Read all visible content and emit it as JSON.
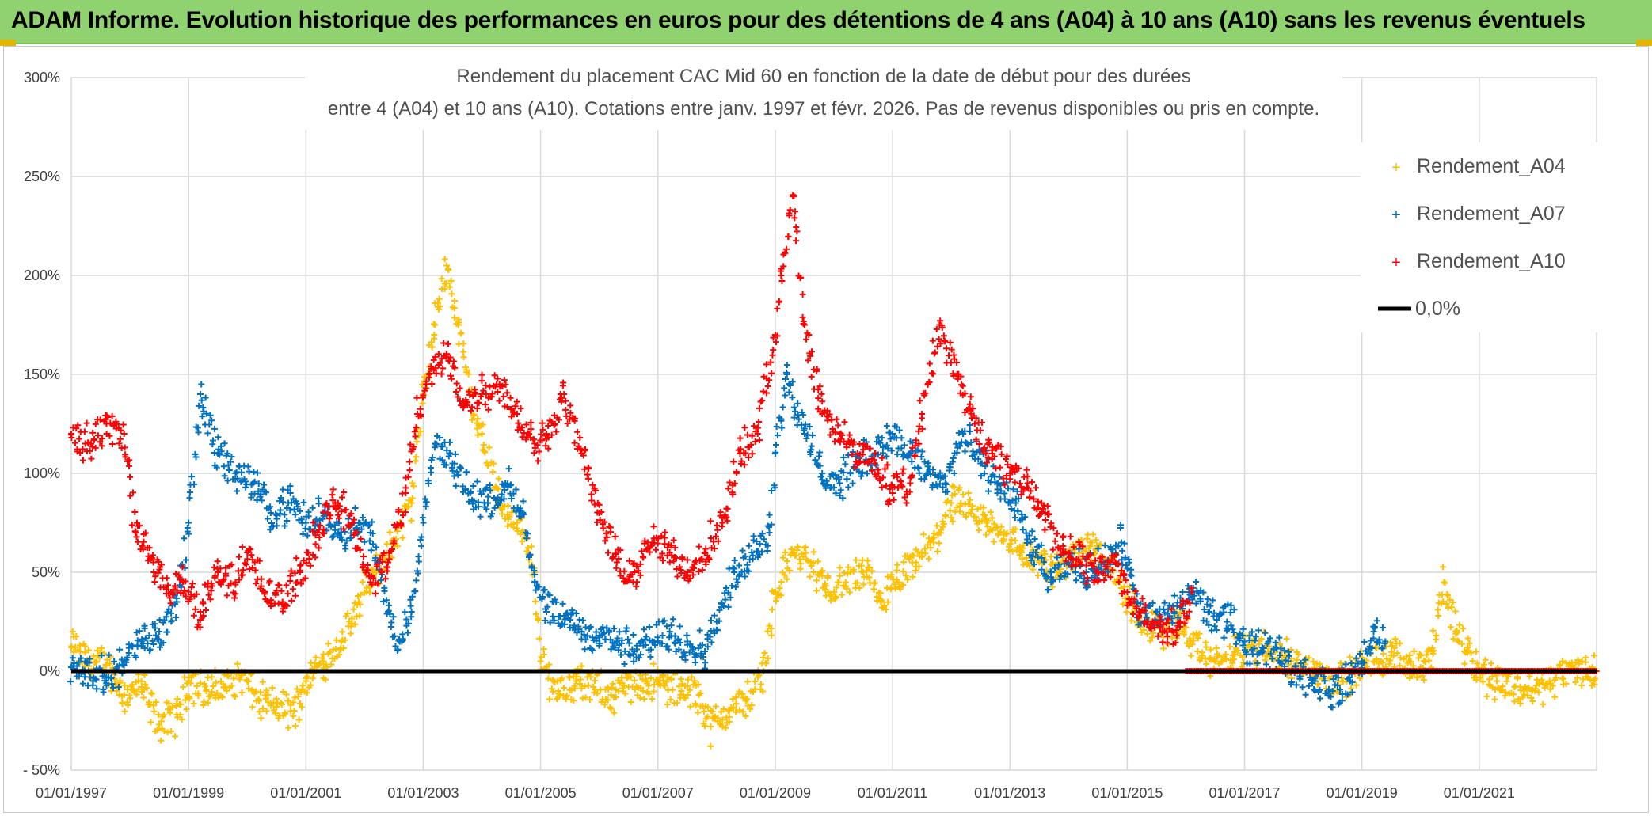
{
  "header": {
    "title": "ADAM Informe. Evolution historique des performances en euros pour des détentions de 4 ans (A04) à 10 ans (A10) sans les revenus éventuels"
  },
  "colors": {
    "banner": "#8fd26f",
    "a04": "#ffc000",
    "a07": "#0070c0",
    "a10": "#ff0000",
    "zero_line": "#000000",
    "grid": "#d9d9d9"
  },
  "chart_data": {
    "type": "scatter",
    "title_lines": [
      "Rendement du placement CAC Mid 60 en fonction de la date de début pour des durées",
      "entre 4 (A04) et 10 ans (A10). Cotations entre janv. 1997 et févr. 2026. Pas de revenus disponibles ou pris en compte."
    ],
    "xlabel": "",
    "ylabel": "",
    "xlim": [
      1997.0,
      2023.0
    ],
    "ylim": [
      -50,
      300
    ],
    "y_ticks": [
      -50,
      0,
      50,
      100,
      150,
      200,
      250,
      300
    ],
    "y_tick_labels": [
      "- 50%",
      "0%",
      "50%",
      "100%",
      "150%",
      "200%",
      "250%",
      "300%"
    ],
    "x_ticks": [
      1997,
      1999,
      2001,
      2003,
      2005,
      2007,
      2009,
      2011,
      2013,
      2015,
      2017,
      2019,
      2021
    ],
    "x_tick_labels": [
      "01/01/1997",
      "01/01/1999",
      "01/01/2001",
      "01/01/2003",
      "01/01/2005",
      "01/01/2007",
      "01/01/2009",
      "01/01/2011",
      "01/01/2013",
      "01/01/2015",
      "01/01/2017",
      "01/01/2019",
      "01/01/2021"
    ],
    "legend_position": "right",
    "legend": [
      {
        "label": "Rendement_A04",
        "marker": "plus",
        "color": "#ffc000"
      },
      {
        "label": "Rendement_A07",
        "marker": "plus",
        "color": "#0070c0"
      },
      {
        "label": "Rendement_A10",
        "marker": "plus",
        "color": "#ff0000"
      },
      {
        "label": "0,0%",
        "marker": "line",
        "color": "#000000"
      }
    ],
    "series": [
      {
        "name": "Rendement_A04",
        "x": [
          1997.0,
          1997.3,
          1997.6,
          1997.9,
          1998.2,
          1998.5,
          1998.8,
          1999.0,
          1999.3,
          1999.6,
          1999.9,
          2000.2,
          2000.5,
          2000.8,
          2001.0,
          2001.3,
          2001.6,
          2001.9,
          2002.2,
          2002.5,
          2002.8,
          2003.0,
          2003.2,
          2003.4,
          2003.6,
          2003.8,
          2004.0,
          2004.3,
          2004.6,
          2004.9,
          2005.0,
          2005.3,
          2005.6,
          2005.9,
          2006.2,
          2006.5,
          2006.8,
          2007.1,
          2007.4,
          2007.7,
          2007.9,
          2008.2,
          2008.5,
          2008.8,
          2009.0,
          2009.3,
          2009.6,
          2009.9,
          2010.2,
          2010.5,
          2010.8,
          2011.1,
          2011.4,
          2011.7,
          2012.0,
          2012.3,
          2012.6,
          2012.9,
          2013.2,
          2013.5,
          2013.8,
          2014.1,
          2014.4,
          2014.7,
          2015.0,
          2015.3,
          2015.6,
          2015.9,
          2016.2,
          2016.5,
          2016.8,
          2017.1,
          2017.4,
          2017.7,
          2018.0,
          2018.3,
          2018.6,
          2018.9,
          2019.2,
          2019.5,
          2019.8,
          2020.0,
          2020.2,
          2020.4,
          2020.6,
          2020.8,
          2021.0,
          2021.3,
          2021.6,
          2021.9,
          2022.2,
          2022.5,
          2022.8,
          2023.0
        ],
        "values": [
          12,
          5,
          3,
          -12,
          -8,
          -27,
          -22,
          -5,
          -10,
          -8,
          -2,
          -15,
          -18,
          -20,
          -5,
          5,
          15,
          35,
          50,
          65,
          85,
          140,
          175,
          205,
          175,
          140,
          120,
          85,
          75,
          50,
          5,
          -10,
          -5,
          -8,
          -12,
          -8,
          -5,
          -7,
          -10,
          -12,
          -28,
          -20,
          -15,
          0,
          40,
          60,
          55,
          40,
          45,
          50,
          35,
          45,
          55,
          65,
          85,
          80,
          75,
          70,
          60,
          55,
          50,
          60,
          65,
          55,
          35,
          25,
          20,
          25,
          10,
          5,
          8,
          12,
          10,
          8,
          2,
          0,
          -5,
          0,
          5,
          8,
          5,
          2,
          10,
          45,
          20,
          12,
          0,
          -5,
          -8,
          -10,
          -5,
          0,
          0,
          0
        ]
      },
      {
        "name": "Rendement_A07",
        "x": [
          1997.0,
          1997.3,
          1997.6,
          1997.9,
          1998.2,
          1998.5,
          1998.8,
          1999.0,
          1999.2,
          1999.5,
          1999.8,
          2000.1,
          2000.4,
          2000.7,
          2001.0,
          2001.3,
          2001.6,
          2001.9,
          2002.1,
          2002.4,
          2002.6,
          2002.8,
          2003.0,
          2003.2,
          2003.5,
          2003.8,
          2004.1,
          2004.4,
          2004.7,
          2004.9,
          2005.1,
          2005.4,
          2005.7,
          2006.0,
          2006.3,
          2006.6,
          2006.9,
          2007.2,
          2007.5,
          2007.8,
          2008.0,
          2008.3,
          2008.6,
          2008.9,
          2009.0,
          2009.2,
          2009.5,
          2009.8,
          2010.1,
          2010.4,
          2010.7,
          2011.0,
          2011.3,
          2011.6,
          2011.9,
          2012.2,
          2012.5,
          2012.8,
          2013.1,
          2013.4,
          2013.7,
          2014.0,
          2014.3,
          2014.6,
          2014.9,
          2015.2,
          2015.5,
          2015.8,
          2016.1,
          2016.4,
          2016.7,
          2017.0,
          2017.3,
          2017.6,
          2017.9,
          2018.2,
          2018.5,
          2018.8,
          2019.0,
          2019.2,
          2019.4
        ],
        "values": [
          2,
          0,
          -3,
          5,
          15,
          20,
          35,
          75,
          140,
          110,
          100,
          95,
          80,
          85,
          75,
          80,
          70,
          75,
          70,
          30,
          15,
          30,
          75,
          115,
          105,
          90,
          85,
          95,
          80,
          45,
          30,
          28,
          20,
          18,
          15,
          10,
          15,
          20,
          15,
          10,
          25,
          50,
          60,
          70,
          110,
          150,
          120,
          100,
          95,
          105,
          110,
          120,
          110,
          100,
          95,
          120,
          105,
          95,
          85,
          60,
          45,
          55,
          50,
          55,
          65,
          30,
          25,
          30,
          40,
          30,
          25,
          15,
          12,
          8,
          0,
          -5,
          -10,
          -5,
          5,
          20,
          15
        ]
      },
      {
        "name": "Rendement_A10",
        "x": [
          1997.0,
          1997.3,
          1997.6,
          1997.9,
          1998.1,
          1998.4,
          1998.7,
          1998.9,
          1999.2,
          1999.5,
          1999.8,
          2000.0,
          2000.3,
          2000.6,
          2000.9,
          2001.2,
          2001.5,
          2001.8,
          2002.1,
          2002.4,
          2002.7,
          2002.9,
          2003.1,
          2003.4,
          2003.7,
          2004.0,
          2004.3,
          2004.6,
          2004.9,
          2005.1,
          2005.4,
          2005.7,
          2006.0,
          2006.3,
          2006.6,
          2006.9,
          2007.2,
          2007.5,
          2007.8,
          2008.1,
          2008.4,
          2008.7,
          2009.0,
          2009.1,
          2009.3,
          2009.5,
          2009.8,
          2010.1,
          2010.4,
          2010.7,
          2011.0,
          2011.3,
          2011.5,
          2011.8,
          2012.1,
          2012.4,
          2012.7,
          2013.0,
          2013.3,
          2013.6,
          2013.9,
          2014.2,
          2014.5,
          2014.8,
          2015.0,
          2015.3,
          2015.6,
          2015.9,
          2016.1
        ],
        "values": [
          120,
          115,
          125,
          120,
          70,
          55,
          40,
          45,
          30,
          50,
          45,
          60,
          40,
          35,
          50,
          70,
          85,
          75,
          45,
          55,
          90,
          130,
          150,
          160,
          135,
          140,
          145,
          130,
          115,
          120,
          140,
          110,
          80,
          55,
          50,
          65,
          60,
          50,
          60,
          75,
          110,
          120,
          170,
          200,
          240,
          175,
          130,
          120,
          110,
          105,
          90,
          95,
          130,
          175,
          150,
          125,
          110,
          100,
          95,
          80,
          60,
          55,
          50,
          55,
          40,
          25,
          20,
          25,
          40
        ]
      }
    ],
    "zero_line": {
      "label": "0,0%",
      "value": 0
    },
    "a10_flat_from": 2016.0
  }
}
